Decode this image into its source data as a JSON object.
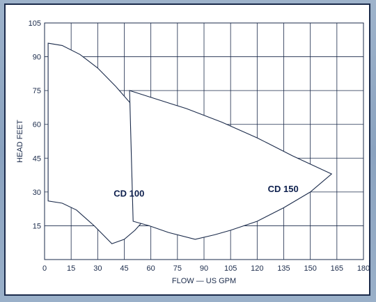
{
  "chart_data": {
    "type": "area",
    "title": "",
    "xlabel": "FLOW — US GPM",
    "ylabel": "HEAD  FEET",
    "xlim": [
      0,
      180
    ],
    "ylim": [
      0,
      105
    ],
    "x_ticks": [
      "0",
      "15",
      "30",
      "45",
      "60",
      "75",
      "90",
      "105",
      "120",
      "135",
      "150",
      "165",
      "180"
    ],
    "y_ticks": [
      "15",
      "30",
      "45",
      "60",
      "75",
      "90",
      "105"
    ],
    "grid": true,
    "regions": [
      {
        "name": "CD 100",
        "label_at": [
          39,
          28
        ],
        "points": [
          [
            2,
            96
          ],
          [
            10,
            95
          ],
          [
            20,
            91
          ],
          [
            30,
            85
          ],
          [
            40,
            77
          ],
          [
            50,
            68
          ],
          [
            60,
            58
          ],
          [
            70,
            49
          ],
          [
            81,
            41
          ],
          [
            69,
            29
          ],
          [
            59,
            20
          ],
          [
            51,
            13
          ],
          [
            45,
            9
          ],
          [
            38,
            7
          ],
          [
            28,
            15
          ],
          [
            18,
            22
          ],
          [
            10,
            25
          ],
          [
            2,
            26
          ]
        ]
      },
      {
        "name": "CD 150",
        "label_at": [
          126,
          30
        ],
        "points": [
          [
            48,
            75
          ],
          [
            60,
            72
          ],
          [
            80,
            67
          ],
          [
            100,
            61
          ],
          [
            120,
            54
          ],
          [
            140,
            46
          ],
          [
            162,
            38
          ],
          [
            150,
            30
          ],
          [
            135,
            23
          ],
          [
            120,
            17
          ],
          [
            105,
            13
          ],
          [
            96,
            11
          ],
          [
            85,
            9
          ],
          [
            70,
            12
          ],
          [
            59,
            15
          ],
          [
            50,
            17
          ]
        ]
      }
    ]
  }
}
